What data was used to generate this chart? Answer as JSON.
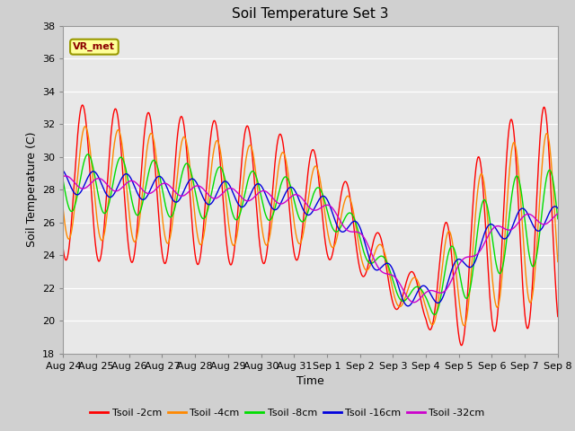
{
  "title": "Soil Temperature Set 3",
  "xlabel": "Time",
  "ylabel": "Soil Temperature (C)",
  "ylim": [
    18,
    38
  ],
  "yticks": [
    18,
    20,
    22,
    24,
    26,
    28,
    30,
    32,
    34,
    36,
    38
  ],
  "annotation_text": "VR_met",
  "fig_bg_color": "#d0d0d0",
  "plot_bg_color": "#e8e8e8",
  "grid_color": "#ffffff",
  "line_colors": {
    "Tsoil -2cm": "#ff0000",
    "Tsoil -4cm": "#ff8800",
    "Tsoil -8cm": "#00dd00",
    "Tsoil -16cm": "#0000dd",
    "Tsoil -32cm": "#cc00cc"
  },
  "xtick_labels": [
    "Aug 24",
    "Aug 25",
    "Aug 26",
    "Aug 27",
    "Aug 28",
    "Aug 29",
    "Aug 30",
    "Aug 31",
    "Sep 1",
    "Sep 2",
    "Sep 3",
    "Sep 4",
    "Sep 5",
    "Sep 6",
    "Sep 7",
    "Sep 8"
  ],
  "num_days": 15
}
